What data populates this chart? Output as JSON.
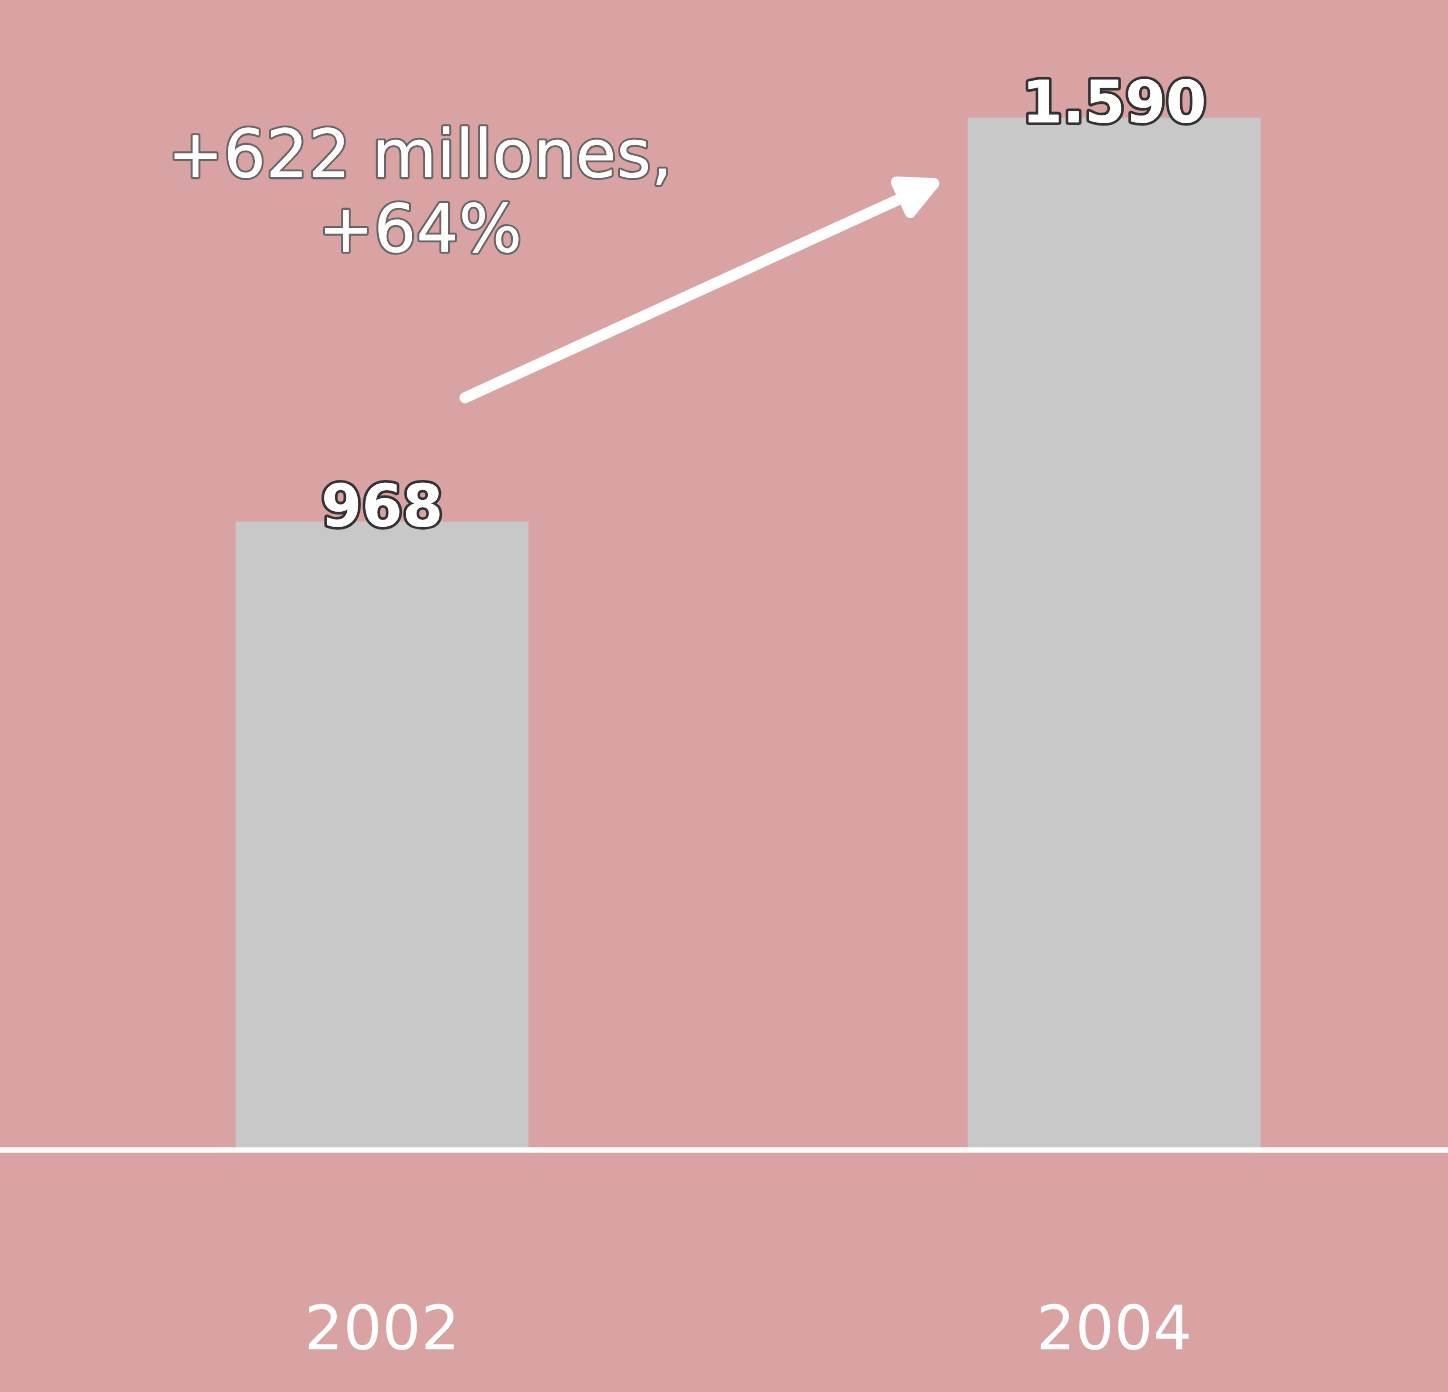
{
  "chart_data": {
    "type": "bar",
    "categories": [
      "2002",
      "2004"
    ],
    "values": [
      968,
      1590
    ],
    "value_labels": [
      "968",
      "1.590"
    ],
    "color": "#c8c8c8",
    "annotations": [
      "+622 millones,\n+64%"
    ],
    "grid": false,
    "legend": false
  }
}
